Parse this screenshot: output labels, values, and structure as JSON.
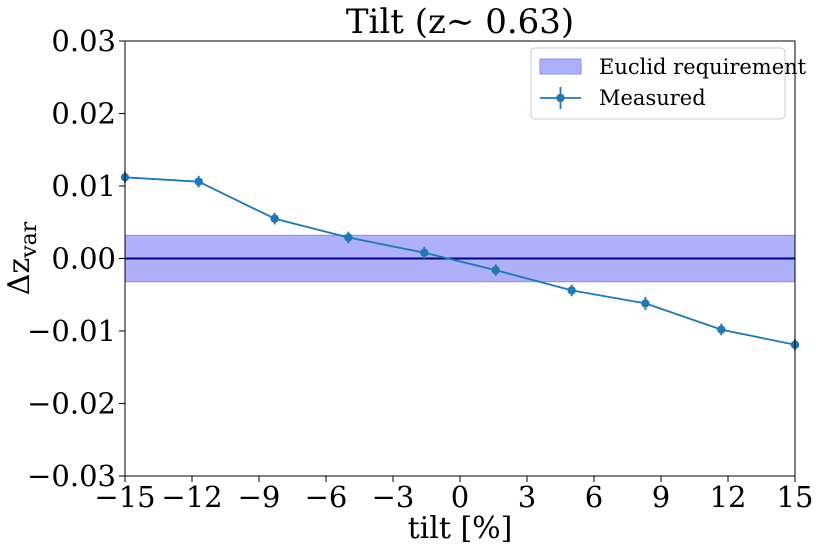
{
  "chart_data": {
    "type": "line",
    "title": "Tilt (z∼ 0.63)",
    "xlabel": "tilt [%]",
    "ylabel_main": "Δz",
    "ylabel_sub": "var",
    "xlim": [
      -15,
      15
    ],
    "ylim": [
      -0.03,
      0.03
    ],
    "x_ticks": [
      -15,
      -12,
      -9,
      -6,
      -3,
      0,
      3,
      6,
      9,
      12,
      15
    ],
    "x_tick_labels": [
      "−15",
      "−12",
      "−9",
      "−6",
      "−3",
      "0",
      "3",
      "6",
      "9",
      "12",
      "15"
    ],
    "y_ticks": [
      0.03,
      0.02,
      0.01,
      0.0,
      -0.01,
      -0.02,
      -0.03
    ],
    "y_tick_labels": [
      "0.03",
      "0.02",
      "0.01",
      "0.00",
      "−0.01",
      "−0.02",
      "−0.03"
    ],
    "band": {
      "name": "Euclid requirement",
      "y_min": -0.0032,
      "y_max": 0.0032,
      "color": "#aeb1fa",
      "edge": "#8a8ef2"
    },
    "zero_line": {
      "y": 0.0,
      "color": "#00008b"
    },
    "series": [
      {
        "name": "Measured",
        "color": "#1f77b4",
        "x": [
          -15,
          -11.7,
          -8.3,
          -5,
          -1.6,
          1.6,
          5,
          8.3,
          11.7,
          15
        ],
        "y": [
          0.0112,
          0.0106,
          0.0055,
          0.0029,
          0.0008,
          -0.0016,
          -0.0044,
          -0.0062,
          -0.0098,
          -0.0119
        ],
        "yerr": [
          0.0008,
          0.0008,
          0.0008,
          0.0008,
          0.0008,
          0.0008,
          0.0008,
          0.0009,
          0.0008,
          0.0008
        ]
      }
    ],
    "legend": {
      "position": "top-right",
      "entries": [
        "Euclid requirement",
        "Measured"
      ]
    },
    "grid": false
  }
}
